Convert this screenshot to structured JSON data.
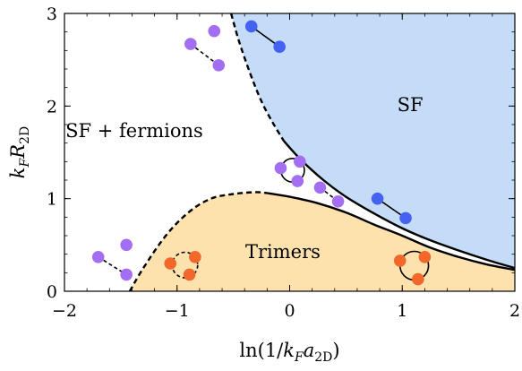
{
  "chart_data": {
    "type": "area",
    "title": "",
    "xlabel": "ln(1/kFa2D)",
    "ylabel": "kFR2D",
    "xlim": [
      -2,
      2
    ],
    "ylim": [
      0,
      3
    ],
    "xticks": [
      -2,
      -1,
      0,
      1,
      2
    ],
    "yticks": [
      0,
      1,
      2,
      3
    ],
    "xtick_labels": [
      "−2",
      "−1",
      "0",
      "1",
      "2"
    ],
    "ytick_labels": [
      "0",
      "1",
      "2",
      "3"
    ],
    "grid": false,
    "regions": [
      {
        "label": "SF",
        "color": "#c4dcf7",
        "label_x": 1.07,
        "label_y": 2.0
      },
      {
        "label": "SF + fermions",
        "color": "#ffffff",
        "label_x": -1.38,
        "label_y": 1.72
      },
      {
        "label": "Trimers",
        "color": "#fde2ad",
        "label_x": -0.06,
        "label_y": 0.41
      }
    ],
    "series": [
      {
        "style": "dashed",
        "x": [
          -1.42,
          -1.3,
          -1.1,
          -0.9,
          -0.7,
          -0.5,
          -0.3,
          -0.2
        ],
        "y": [
          0.0,
          0.25,
          0.6,
          0.85,
          1.0,
          1.05,
          1.07,
          1.06
        ]
      },
      {
        "style": "solid",
        "x": [
          -0.2,
          0.0,
          0.25,
          0.5,
          0.75,
          1.0,
          1.25,
          1.5,
          1.75,
          2.0
        ],
        "y": [
          1.06,
          1.02,
          0.95,
          0.85,
          0.72,
          0.6,
          0.47,
          0.37,
          0.29,
          0.23
        ]
      },
      {
        "style": "dashed",
        "x": [
          -0.52,
          -0.45,
          -0.35,
          -0.25,
          -0.15,
          -0.05
        ],
        "y": [
          3.0,
          2.7,
          2.35,
          2.05,
          1.82,
          1.62
        ]
      },
      {
        "style": "solid",
        "x": [
          -0.05,
          0.1,
          0.3,
          0.5,
          0.75,
          1.0,
          1.25,
          1.5,
          1.75,
          2.0
        ],
        "y": [
          1.62,
          1.42,
          1.2,
          1.02,
          0.84,
          0.68,
          0.55,
          0.44,
          0.34,
          0.25
        ]
      }
    ],
    "particles": {
      "purple": "#a46ef2",
      "orange": "#f2672a",
      "blue": "#4561f0",
      "pairs": [
        {
          "color": "purple",
          "link": "dashed",
          "points": [
            [
              -0.88,
              2.67
            ],
            [
              -0.63,
              2.44
            ]
          ]
        },
        {
          "color": "purple",
          "link": "none",
          "points": [
            [
              -0.67,
              2.81
            ]
          ]
        },
        {
          "color": "blue",
          "link": "solid",
          "points": [
            [
              -0.34,
              2.86
            ],
            [
              -0.09,
              2.64
            ]
          ]
        },
        {
          "color": "purple",
          "link": "dashed",
          "points": [
            [
              -1.7,
              0.37
            ],
            [
              -1.45,
              0.18
            ]
          ]
        },
        {
          "color": "purple",
          "link": "none",
          "points": [
            [
              -1.45,
              0.5
            ]
          ]
        },
        {
          "color": "purple",
          "link": "dashed",
          "points": [
            [
              0.27,
              1.12
            ],
            [
              0.43,
              0.97
            ]
          ]
        },
        {
          "color": "blue",
          "link": "solid",
          "points": [
            [
              0.78,
              1.0
            ],
            [
              1.03,
              0.79
            ]
          ]
        }
      ],
      "trimers": [
        {
          "color": "purple",
          "link": "solid",
          "points": [
            [
              -0.08,
              1.33
            ],
            [
              0.09,
              1.4
            ],
            [
              0.07,
              1.19
            ]
          ]
        },
        {
          "color": "orange",
          "link": "dashed",
          "points": [
            [
              -1.06,
              0.3
            ],
            [
              -0.84,
              0.37
            ],
            [
              -0.89,
              0.18
            ]
          ]
        },
        {
          "color": "orange",
          "link": "solid",
          "points": [
            [
              0.98,
              0.33
            ],
            [
              1.2,
              0.37
            ],
            [
              1.14,
              0.13
            ]
          ]
        }
      ]
    }
  }
}
